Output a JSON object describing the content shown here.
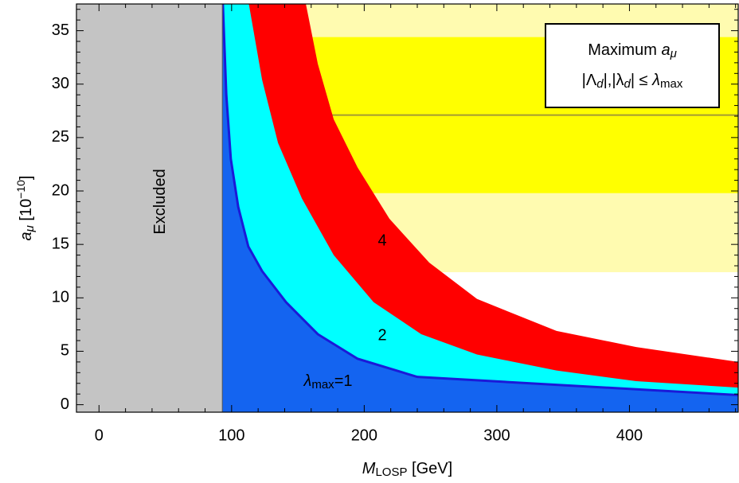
{
  "chart_data": {
    "type": "area",
    "xlabel": [
      {
        "text": "M",
        "italic": true
      },
      {
        "text": "LOSP",
        "sub": true
      },
      {
        "text": " [GeV]"
      }
    ],
    "ylabel": [
      {
        "text": "a",
        "italic": true
      },
      {
        "text": "μ",
        "sub": true,
        "italic": true
      },
      {
        "text": " [10"
      },
      {
        "text": "−10",
        "sup": true
      },
      {
        "text": "]"
      }
    ],
    "xlim": [
      -17,
      482
    ],
    "ylim": [
      -0.7,
      37.5
    ],
    "xticks": [
      0,
      100,
      200,
      300,
      400
    ],
    "yticks": [
      0,
      5,
      10,
      15,
      20,
      25,
      30,
      35
    ],
    "xticks_minor": [
      20,
      40,
      60,
      80,
      120,
      140,
      160,
      180,
      220,
      240,
      260,
      280,
      320,
      340,
      360,
      380,
      420,
      440,
      460,
      480
    ],
    "yticks_minor": [
      1,
      2,
      3,
      4,
      6,
      7,
      8,
      9,
      11,
      12,
      13,
      14,
      16,
      17,
      18,
      19,
      21,
      22,
      23,
      24,
      26,
      27,
      28,
      29,
      31,
      32,
      33,
      34,
      36,
      37
    ],
    "bands": [
      {
        "y": [
          12.4,
          41.8
        ],
        "color": "#fffbb0"
      },
      {
        "y": [
          19.8,
          34.4
        ],
        "color": "#ffff00"
      }
    ],
    "center_line": {
      "y": 27.1,
      "color": "#a39b33"
    },
    "excluded": {
      "x": 93,
      "color": "#c4c4c4",
      "label": "Excluded"
    },
    "series": [
      {
        "name": "4",
        "color": "#ff0000",
        "x": [
          156,
          165,
          177,
          195,
          219,
          249,
          285,
          345,
          405,
          482
        ],
        "values": [
          37.5,
          31.9,
          26.7,
          22.2,
          17.4,
          13.3,
          9.9,
          6.9,
          5.4,
          4.0
        ]
      },
      {
        "name": "2",
        "color": "#00ffff",
        "x": [
          113,
          123,
          135,
          153,
          177,
          207,
          243,
          285,
          345,
          405,
          482
        ],
        "values": [
          37.5,
          30.4,
          24.5,
          19.3,
          14.0,
          9.6,
          6.6,
          4.7,
          3.2,
          2.2,
          1.6
        ]
      },
      {
        "name": [
          {
            "text": "λ",
            "italic": true
          },
          {
            "text": "max",
            "sub": true
          },
          {
            "text": "=1"
          }
        ],
        "color": "#1464f0",
        "line_color": "#1a1ad8",
        "x": [
          93.4,
          96,
          99.4,
          105,
          112.6,
          123,
          141,
          165,
          195,
          240,
          482
        ],
        "values": [
          37.5,
          29,
          23,
          18.5,
          14.8,
          12.5,
          9.6,
          6.6,
          4.3,
          2.6,
          0.9
        ]
      }
    ],
    "legend": [
      [
        {
          "text": "Maximum "
        },
        {
          "text": "a",
          "italic": true
        },
        {
          "text": "μ",
          "sub": true,
          "italic": true
        }
      ],
      [
        {
          "text": "|Λ"
        },
        {
          "text": "d",
          "sub": true,
          "italic": true
        },
        {
          "text": "|,|λ"
        },
        {
          "text": "d",
          "sub": true,
          "italic": true
        },
        {
          "text": "| ≤ "
        },
        {
          "text": "λ",
          "italic": true
        },
        {
          "text": "max",
          "sub": true
        }
      ]
    ]
  }
}
